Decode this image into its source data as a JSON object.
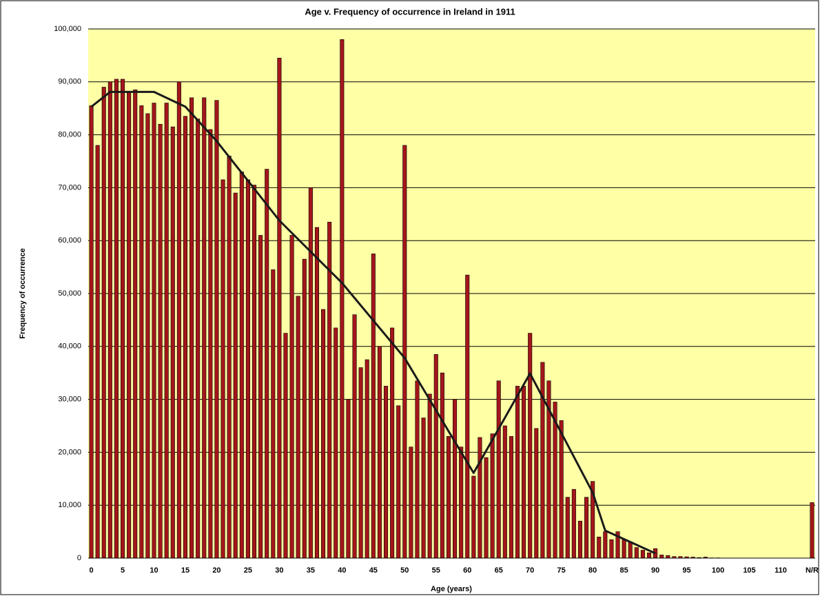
{
  "chart_data": {
    "type": "bar",
    "title": "Age v. Frequency of occurrence in Ireland in 1911",
    "x_label": "Age (years)",
    "y_label": "Frequency of occurrence",
    "categories": [
      "0",
      null,
      null,
      null,
      null,
      "5",
      null,
      null,
      null,
      null,
      "10",
      null,
      null,
      null,
      null,
      "15",
      null,
      null,
      null,
      null,
      "20",
      null,
      null,
      null,
      null,
      "25",
      null,
      null,
      null,
      null,
      "30",
      null,
      null,
      null,
      null,
      "35",
      null,
      null,
      null,
      null,
      "40",
      null,
      null,
      null,
      null,
      "45",
      null,
      null,
      null,
      null,
      "50",
      null,
      null,
      null,
      null,
      "55",
      null,
      null,
      null,
      null,
      "60",
      null,
      null,
      null,
      null,
      "65",
      null,
      null,
      null,
      null,
      "70",
      null,
      null,
      null,
      null,
      "75",
      null,
      null,
      null,
      null,
      "80",
      null,
      null,
      null,
      null,
      "85",
      null,
      null,
      null,
      null,
      "90",
      null,
      null,
      null,
      null,
      "95",
      null,
      null,
      null,
      null,
      "100",
      null,
      null,
      null,
      null,
      "105",
      null,
      null,
      null,
      null,
      "110",
      null,
      null,
      null,
      null,
      "N/R"
    ],
    "values": [
      85500,
      78000,
      89000,
      90000,
      90500,
      90500,
      88000,
      88500,
      85500,
      84000,
      86000,
      82000,
      86000,
      81500,
      90000,
      83500,
      87000,
      83000,
      87000,
      81000,
      86500,
      71500,
      76000,
      69000,
      73000,
      71500,
      70500,
      61000,
      73500,
      54500,
      94500,
      42500,
      61000,
      49500,
      56500,
      70000,
      62500,
      47000,
      63500,
      43500,
      98000,
      30000,
      46000,
      36000,
      37500,
      57500,
      40000,
      32500,
      43500,
      28800,
      78000,
      21000,
      33500,
      26500,
      31000,
      38500,
      35000,
      23000,
      30000,
      21000,
      53500,
      15500,
      22800,
      19000,
      23500,
      33500,
      25000,
      23000,
      32500,
      32500,
      42500,
      24500,
      37000,
      33500,
      29500,
      26000,
      11500,
      13000,
      7000,
      11500,
      14500,
      4000,
      5000,
      3500,
      5000,
      3500,
      3000,
      2000,
      1500,
      1000,
      1800,
      600,
      500,
      300,
      300,
      250,
      200,
      100,
      200,
      50,
      50,
      0,
      0,
      0,
      0,
      0,
      0,
      0,
      0,
      0,
      0,
      0,
      0,
      0,
      0,
      10500
    ],
    "color": "#a3161a",
    "trend": {
      "color": "#1a1a1a",
      "x": [
        0,
        3,
        10,
        15,
        20,
        30,
        40,
        50,
        61,
        70,
        80,
        82,
        90
      ],
      "values": [
        85300,
        88100,
        88100,
        85300,
        78800,
        63800,
        52000,
        37800,
        16100,
        34900,
        12400,
        5200,
        900
      ]
    },
    "ylim": [
      0,
      100000
    ],
    "yticks": [
      0,
      {
        "value": 10000,
        "label": "10,000"
      },
      {
        "value": 20000,
        "label": "20,000"
      },
      {
        "value": 30000,
        "label": "30,000"
      },
      {
        "value": 40000,
        "label": "40,000"
      },
      {
        "value": 50000,
        "label": "50,000"
      },
      {
        "value": 60000,
        "label": "60,000"
      },
      {
        "value": 70000,
        "label": "70,000"
      },
      {
        "value": 80000,
        "label": "80,000"
      },
      {
        "value": 90000,
        "label": "90,000"
      },
      {
        "value": 100000,
        "label": "100,000"
      }
    ],
    "grid": true
  }
}
